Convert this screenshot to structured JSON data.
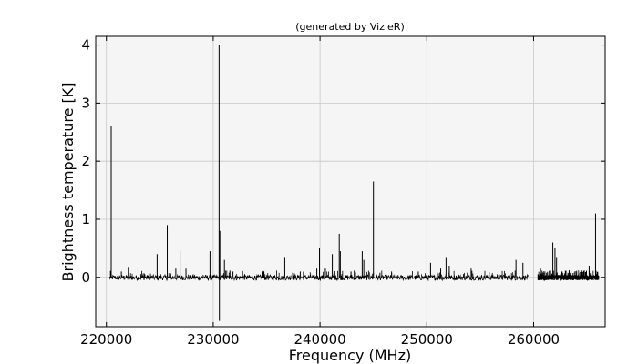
{
  "chart_data": {
    "type": "line",
    "title": "(generated by VizieR)",
    "xlabel": "Frequency (MHz)",
    "ylabel": "Brightness temperature [K]",
    "xlim": [
      219000,
      266700
    ],
    "ylim": [
      -0.85,
      4.15
    ],
    "x_ticks": [
      220000,
      230000,
      240000,
      250000,
      260000
    ],
    "y_ticks": [
      0,
      1,
      2,
      3,
      4
    ],
    "x_tick_labels": [
      "220000",
      "230000",
      "240000",
      "250000",
      "260000"
    ],
    "y_tick_labels": [
      "0",
      "1",
      "2",
      "3",
      "4"
    ],
    "grid": true,
    "colors": {
      "line": "#000000",
      "plot_background": "#f5f5f5",
      "grid": "#c8c8c8"
    },
    "bands": [
      [
        220300,
        259500
      ],
      [
        260400,
        266100
      ]
    ],
    "peaks": [
      {
        "x": 220450,
        "y": 2.6
      },
      {
        "x": 221400,
        "y": 0.1
      },
      {
        "x": 222050,
        "y": 0.18
      },
      {
        "x": 224750,
        "y": 0.4
      },
      {
        "x": 225700,
        "y": 0.9
      },
      {
        "x": 226500,
        "y": 0.15
      },
      {
        "x": 226900,
        "y": 0.45
      },
      {
        "x": 227450,
        "y": 0.15
      },
      {
        "x": 229700,
        "y": 0.45
      },
      {
        "x": 230550,
        "y": 4.0
      },
      {
        "x": 230580,
        "y": -0.75
      },
      {
        "x": 230620,
        "y": 0.8
      },
      {
        "x": 231050,
        "y": 0.3
      },
      {
        "x": 231850,
        "y": 0.1
      },
      {
        "x": 234650,
        "y": 0.1
      },
      {
        "x": 236700,
        "y": 0.35
      },
      {
        "x": 238150,
        "y": 0.1
      },
      {
        "x": 239700,
        "y": 0.15
      },
      {
        "x": 239950,
        "y": 0.5
      },
      {
        "x": 240500,
        "y": 0.15
      },
      {
        "x": 241150,
        "y": 0.4
      },
      {
        "x": 241800,
        "y": 0.75
      },
      {
        "x": 241900,
        "y": 0.45
      },
      {
        "x": 242900,
        "y": 0.1
      },
      {
        "x": 243950,
        "y": 0.45
      },
      {
        "x": 244100,
        "y": 0.3
      },
      {
        "x": 245000,
        "y": 1.65
      },
      {
        "x": 246700,
        "y": 0.1
      },
      {
        "x": 249200,
        "y": 0.1
      },
      {
        "x": 250350,
        "y": 0.25
      },
      {
        "x": 251300,
        "y": 0.15
      },
      {
        "x": 251800,
        "y": 0.35
      },
      {
        "x": 252100,
        "y": 0.2
      },
      {
        "x": 254150,
        "y": 0.15
      },
      {
        "x": 258350,
        "y": 0.3
      },
      {
        "x": 259000,
        "y": 0.25
      },
      {
        "x": 260650,
        "y": 0.15
      },
      {
        "x": 261800,
        "y": 0.6
      },
      {
        "x": 262000,
        "y": 0.5
      },
      {
        "x": 262150,
        "y": 0.35
      },
      {
        "x": 265200,
        "y": 0.2
      },
      {
        "x": 265800,
        "y": 1.1
      }
    ]
  }
}
